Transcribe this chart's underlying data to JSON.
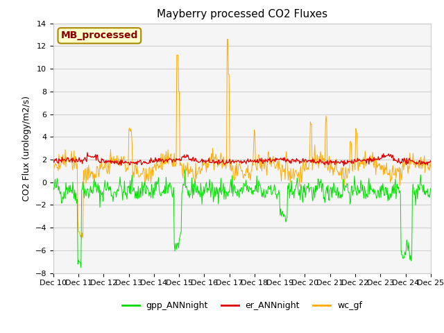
{
  "title": "Mayberry processed CO2 Fluxes",
  "ylabel": "CO2 Flux (urology/m2/s)",
  "ylim": [
    -8,
    14
  ],
  "yticks": [
    -8,
    -6,
    -4,
    -2,
    0,
    2,
    4,
    6,
    8,
    10,
    12,
    14
  ],
  "n_points": 600,
  "colors": {
    "gpp": "#00dd00",
    "er": "#dd0000",
    "wc": "#ffaa00"
  },
  "legend_labels": [
    "gpp_ANNnight",
    "er_ANNnight",
    "wc_gf"
  ],
  "annotation_text": "MB_processed",
  "annotation_color": "#880000",
  "annotation_bg": "#ffffcc",
  "annotation_border": "#aa8800",
  "plot_bg": "#f5f5f5",
  "grid_color": "#d0d0d0",
  "title_fontsize": 11,
  "axis_fontsize": 9,
  "tick_fontsize": 8,
  "legend_fontsize": 9
}
